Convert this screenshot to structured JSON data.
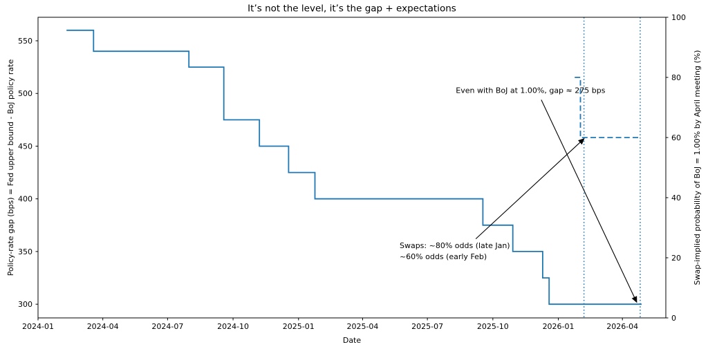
{
  "figure": {
    "title": "It’s not the level, it’s the gap + expectations",
    "xlabel": "Date",
    "ylabel_left": "Policy-rate gap (bps) = Fed upper bound - BoJ policy rate",
    "ylabel_right": "Swap-implied probability of BoJ = 1.00% by April meeting (%)"
  },
  "chart_data": {
    "type": "line",
    "title": "It’s not the level, it’s the gap + expectations",
    "xlabel": "Date",
    "ylabel_left": "Policy-rate gap (bps) = Fed upper bound - BoJ policy rate",
    "ylabel_right": "Swap-implied probability of BoJ = 1.00% by April meeting (%)",
    "grid": false,
    "legend": null,
    "xlim": [
      "2024-01-01",
      "2026-06-01"
    ],
    "ylim_left": [
      287,
      572.3
    ],
    "ylim_right": [
      0,
      100
    ],
    "x_ticks": [
      {
        "date": "2024-01-01",
        "label": "2024-01"
      },
      {
        "date": "2024-04-01",
        "label": "2024-04"
      },
      {
        "date": "2024-07-01",
        "label": "2024-07"
      },
      {
        "date": "2024-10-01",
        "label": "2024-10"
      },
      {
        "date": "2025-01-01",
        "label": "2025-01"
      },
      {
        "date": "2025-04-01",
        "label": "2025-04"
      },
      {
        "date": "2025-07-01",
        "label": "2025-07"
      },
      {
        "date": "2025-10-01",
        "label": "2025-10"
      },
      {
        "date": "2026-01-01",
        "label": "2026-01"
      },
      {
        "date": "2026-04-01",
        "label": "2026-04"
      }
    ],
    "y_ticks_left": [
      300,
      350,
      400,
      450,
      500,
      550
    ],
    "y_ticks_right": [
      0,
      20,
      40,
      60,
      80,
      100
    ],
    "accent_color": "#1f77b4",
    "series": [
      {
        "name": "policy-rate-gap-bps",
        "axis": "left",
        "style": "solid",
        "step": "post",
        "color": "#1f77b4",
        "points": [
          [
            "2024-02-10",
            560
          ],
          [
            "2024-03-19",
            540
          ],
          [
            "2024-07-31",
            525
          ],
          [
            "2024-09-18",
            475
          ],
          [
            "2024-11-07",
            450
          ],
          [
            "2024-12-18",
            425
          ],
          [
            "2025-01-24",
            400
          ],
          [
            "2025-09-17",
            375
          ],
          [
            "2025-10-29",
            350
          ],
          [
            "2025-12-10",
            325
          ],
          [
            "2025-12-19",
            300
          ],
          [
            "2026-04-28",
            300
          ]
        ]
      },
      {
        "name": "swap-implied-probability-pct",
        "axis": "right",
        "style": "dashed",
        "step": null,
        "color": "#1f77b4",
        "points": [
          [
            "2026-01-24",
            80
          ],
          [
            "2026-02-01",
            80
          ],
          [
            "2026-02-01",
            60
          ],
          [
            "2026-04-26",
            60
          ]
        ]
      }
    ],
    "vlines": [
      {
        "name": "vline-early-feb-2026",
        "date": "2026-02-06",
        "style": "dotted",
        "color": "#1f77b4"
      },
      {
        "name": "vline-april-2026-meeting",
        "date": "2026-04-26",
        "style": "dotted",
        "color": "#1f77b4"
      }
    ],
    "annotations": [
      {
        "name": "annotation-gap-at-april",
        "lines": [
          "Even with BoJ at 1.00%, gap ≈ 275 bps"
        ],
        "text_pos": [
          "2025-08-10",
          503
        ],
        "arrow_from": [
          "2025-12-08",
          494
        ],
        "arrow_to": [
          "2026-04-21",
          302
        ],
        "arrow_color": "#000000"
      },
      {
        "name": "annotation-swap-odds",
        "lines": [
          "Swaps: ~80% odds (late Jan)",
          "~60% odds (early Feb)"
        ],
        "text_pos": [
          "2025-05-23",
          356
        ],
        "arrow_from": [
          "2025-09-07",
          362
        ],
        "arrow_to": [
          "2026-02-06",
          457
        ],
        "arrow_color": "#000000"
      }
    ]
  }
}
